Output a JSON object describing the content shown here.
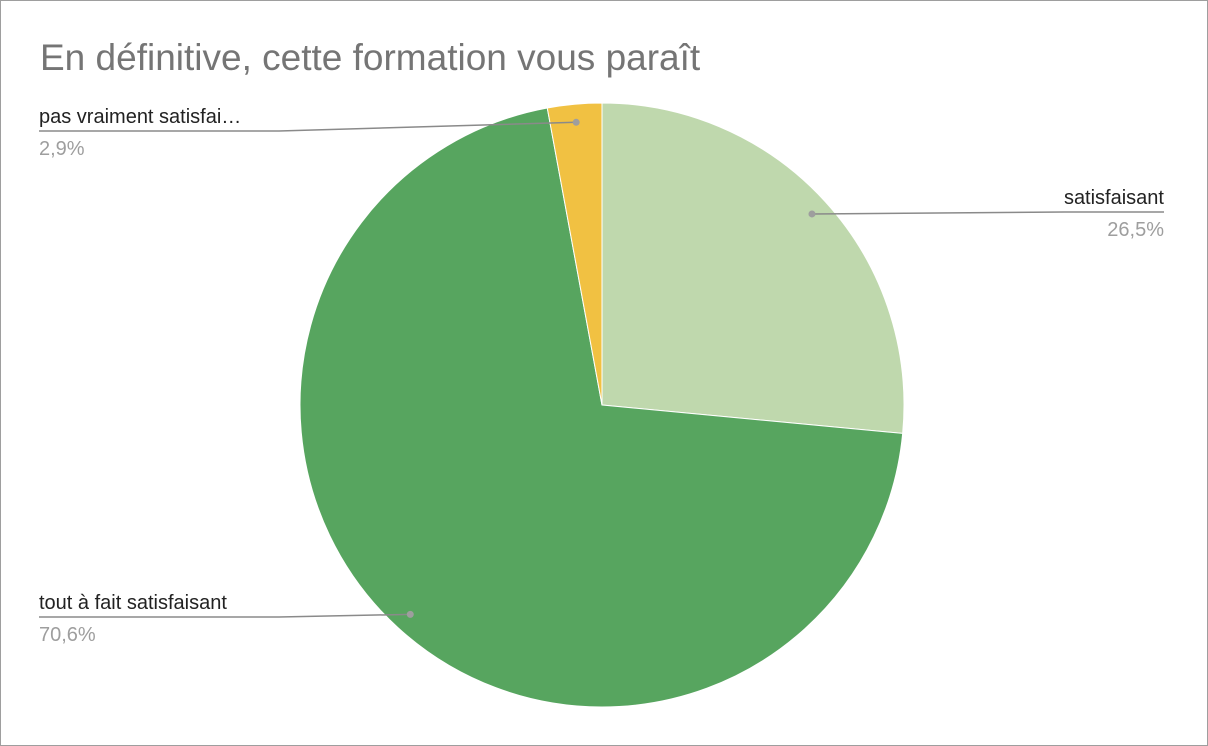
{
  "chart_data": {
    "type": "pie",
    "title": "En définitive, cette formation vous paraît",
    "slices": [
      {
        "label": "satisfaisant",
        "value": 26.5,
        "percent_label": "26,5%",
        "color": "#bfd8ad"
      },
      {
        "label": "tout à fait satisfaisant",
        "value": 70.6,
        "percent_label": "70,6%",
        "color": "#57a55f"
      },
      {
        "label": "pas vraiment satisfai…",
        "value": 2.9,
        "percent_label": "2,9%",
        "color": "#f1c142"
      }
    ],
    "start_angle_deg": 0,
    "direction": "clockwise",
    "labels": "outside with leader lines"
  }
}
